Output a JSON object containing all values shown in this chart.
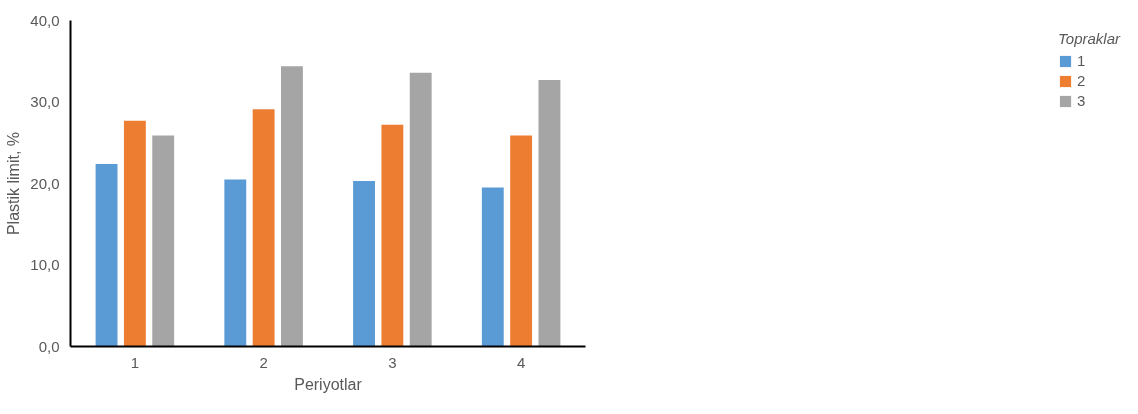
{
  "chart_data": {
    "type": "bar",
    "xlabel": "Periyotlar",
    "ylabel": "Plastik limit, %",
    "legend_title": "Topraklar",
    "legend": "top right",
    "grid": false,
    "categories": [
      "1",
      "2",
      "3",
      "4"
    ],
    "series": [
      {
        "name": "1",
        "color": "#5b9bd5",
        "values": [
          22.4,
          20.5,
          20.3,
          19.5
        ]
      },
      {
        "name": "2",
        "color": "#ed7d31",
        "values": [
          27.7,
          29.1,
          27.2,
          25.9
        ]
      },
      {
        "name": "3",
        "color": "#a5a5a5",
        "values": [
          25.9,
          34.4,
          33.6,
          32.7
        ]
      }
    ],
    "ylim": [
      0,
      40
    ],
    "yticks": [
      {
        "value": 0,
        "label": "0,0"
      },
      {
        "value": 10,
        "label": "10,0"
      },
      {
        "value": 20,
        "label": "20,0"
      },
      {
        "value": 30,
        "label": "30,0"
      },
      {
        "value": 40,
        "label": "40,0"
      }
    ]
  }
}
